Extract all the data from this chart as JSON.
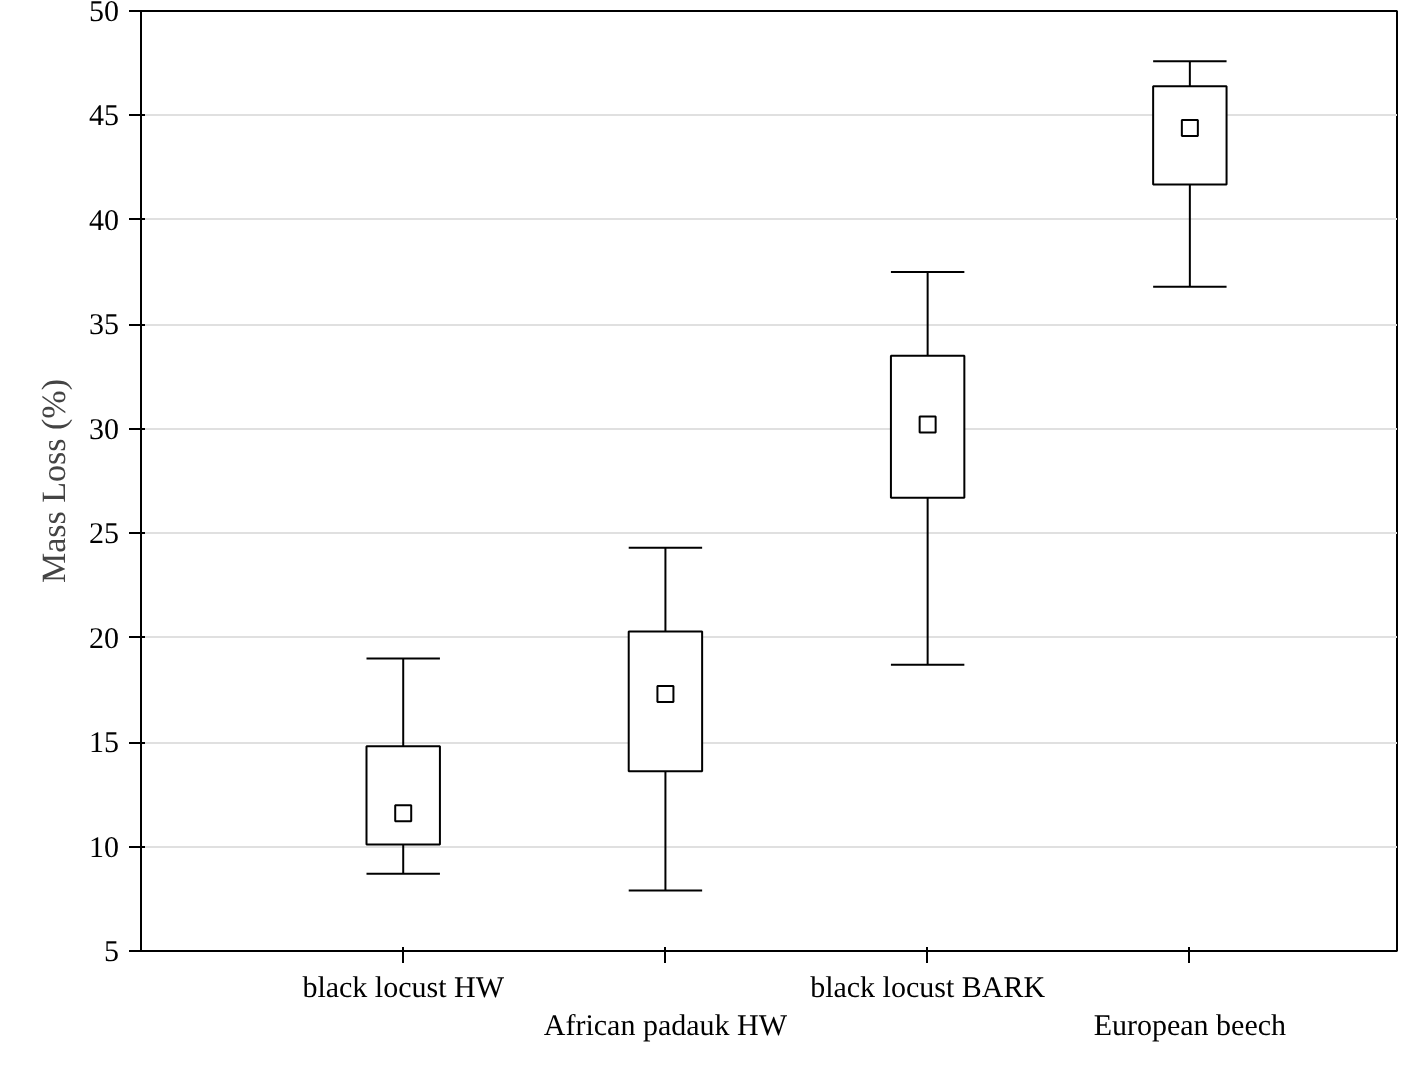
{
  "chart_data": {
    "type": "box",
    "ylabel": "Mass Loss (%)",
    "categories": [
      "black locust HW",
      "African padauk HW",
      "black locust BARK",
      "European beech"
    ],
    "boxes": [
      {
        "low": 8.7,
        "q1": 10.1,
        "median": 11.6,
        "q3": 14.8,
        "high": 19.0
      },
      {
        "low": 7.9,
        "q1": 13.6,
        "median": 17.3,
        "q3": 20.3,
        "high": 24.3
      },
      {
        "low": 18.7,
        "q1": 26.7,
        "median": 30.2,
        "q3": 33.5,
        "high": 37.5
      },
      {
        "low": 36.8,
        "q1": 41.7,
        "median": 44.4,
        "q3": 46.4,
        "high": 47.6
      }
    ],
    "ylim": [
      5,
      50
    ],
    "yticks": [
      5,
      10,
      15,
      20,
      25,
      30,
      35,
      40,
      45,
      50
    ],
    "grid": "y",
    "color": "#000000",
    "marker": "square"
  }
}
